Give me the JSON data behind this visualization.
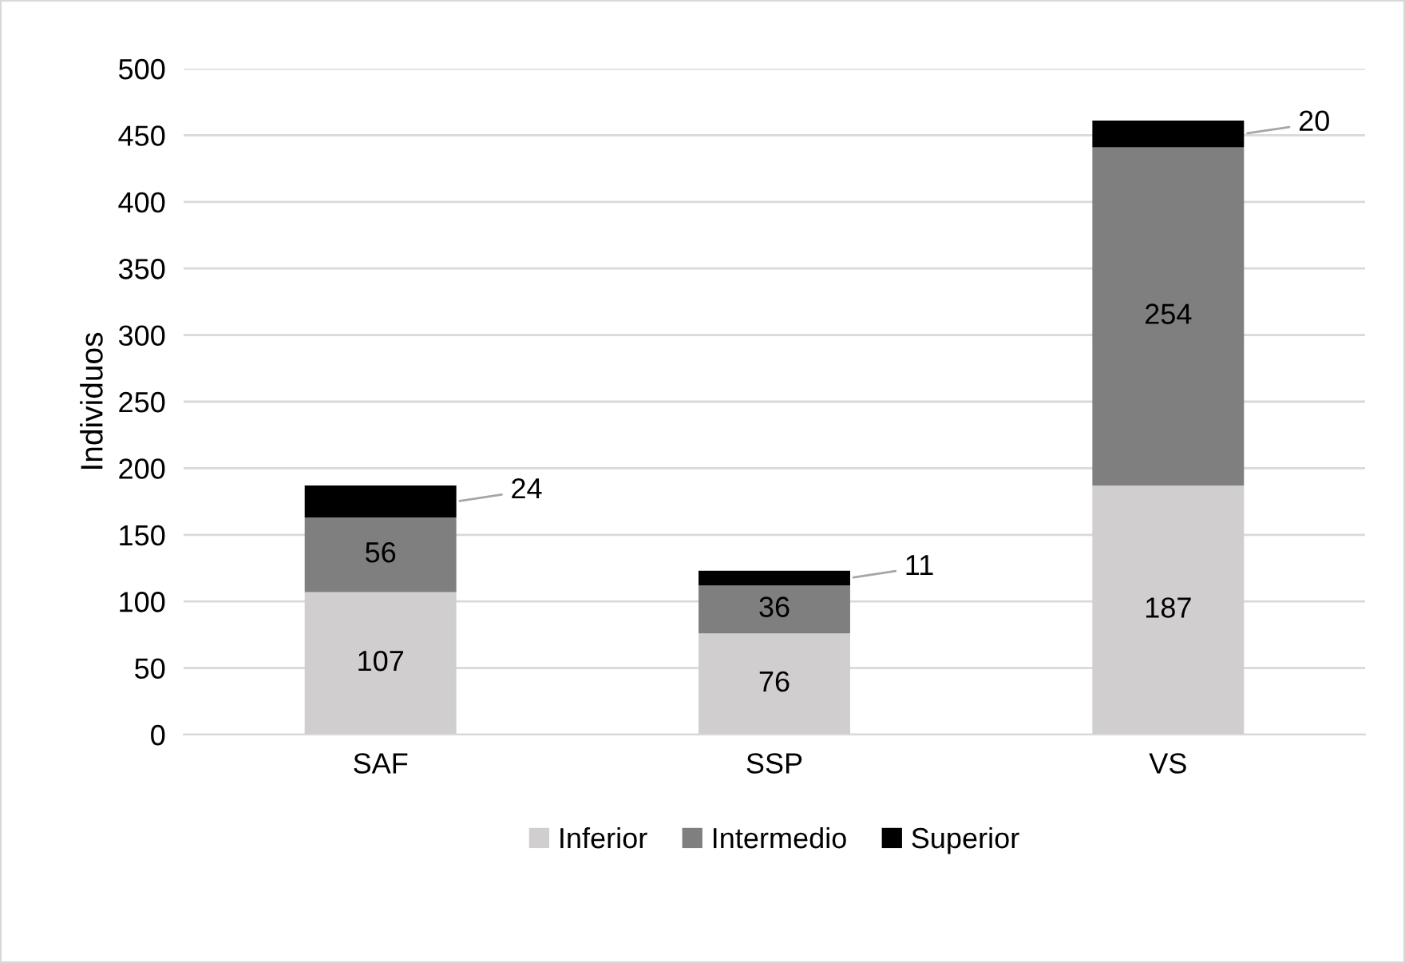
{
  "chart_data": {
    "type": "bar",
    "stacked": true,
    "ylabel": "Individuos",
    "categories": [
      "SAF",
      "SSP",
      "VS"
    ],
    "series": [
      {
        "name": "Inferior",
        "color": "#d0cece",
        "values": [
          107,
          76,
          187
        ]
      },
      {
        "name": "Intermedio",
        "color": "#7f7f7f",
        "values": [
          56,
          36,
          254
        ]
      },
      {
        "name": "Superior",
        "color": "#000000",
        "values": [
          24,
          11,
          20
        ]
      }
    ],
    "ylim": [
      0,
      500
    ],
    "yticks": [
      0,
      50,
      100,
      150,
      200,
      250,
      300,
      350,
      400,
      450,
      500
    ],
    "grid": "y",
    "legend": "bottom",
    "data_labels": true
  }
}
